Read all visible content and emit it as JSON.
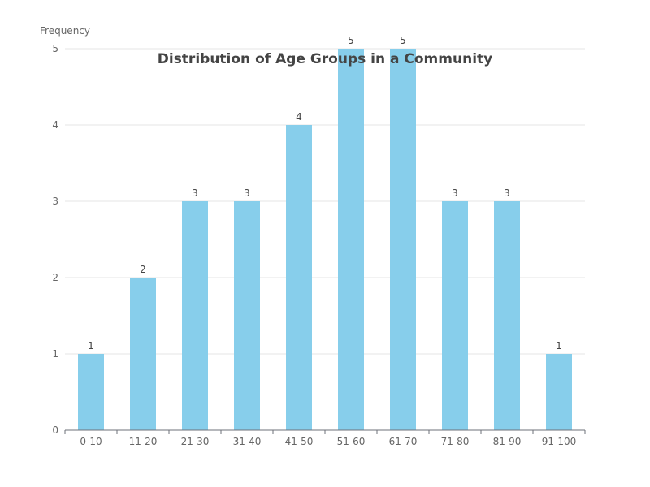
{
  "chart_data": {
    "type": "bar",
    "title": "Distribution of Age Groups in a Community",
    "xlabel": "",
    "ylabel": "Frequency",
    "categories": [
      "0-10",
      "11-20",
      "21-30",
      "31-40",
      "41-50",
      "51-60",
      "61-70",
      "71-80",
      "81-90",
      "91-100"
    ],
    "values": [
      1,
      2,
      3,
      3,
      4,
      5,
      5,
      3,
      3,
      1
    ],
    "ylim": [
      0,
      5
    ],
    "yticks": [
      0,
      1,
      2,
      3,
      4,
      5
    ],
    "grid": true,
    "legend": "none",
    "bar_color": "#87CEEB",
    "data_labels": true
  }
}
